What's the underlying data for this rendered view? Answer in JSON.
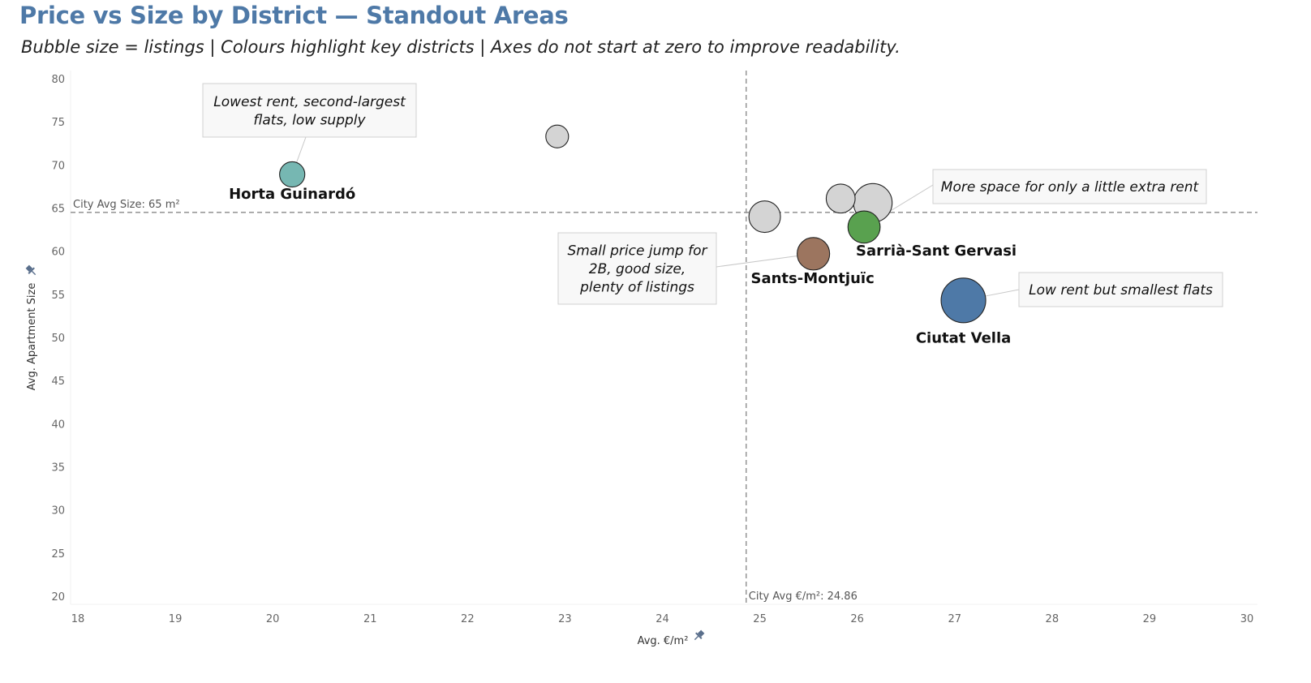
{
  "title": "Price vs Size by District — Standout Areas",
  "subtitle": "Bubble size = listings | Colours highlight key districts | Axes do not start at zero to improve readability.",
  "chart_data": {
    "type": "scatter",
    "encoding": "bubble size = listings",
    "xlabel": "Avg. €/m²",
    "ylabel": "Avg. Apartment Size",
    "xlim": [
      18,
      30
    ],
    "ylim": [
      20,
      81
    ],
    "x_ticks": [
      18,
      19,
      20,
      21,
      22,
      23,
      24,
      25,
      26,
      27,
      28,
      29,
      30
    ],
    "y_ticks": [
      20,
      25,
      30,
      35,
      40,
      45,
      50,
      55,
      60,
      65,
      70,
      75,
      80
    ],
    "gridlines": false,
    "reference_lines": [
      {
        "axis": "x",
        "value": 24.86,
        "label": "City Avg €/m²: 24.86"
      },
      {
        "axis": "y",
        "value": 64.5,
        "label": "City Avg Size: 65 m²"
      }
    ],
    "points": [
      {
        "label": "Horta Guinardó",
        "x": 20.2,
        "y": 68.9,
        "relative_size": 0.32,
        "color": "#76b7b2",
        "highlight": true
      },
      {
        "label": "",
        "x": 22.92,
        "y": 73.3,
        "relative_size": 0.26,
        "color": "#d4d4d4",
        "highlight": false
      },
      {
        "label": "",
        "x": 25.05,
        "y": 64.0,
        "relative_size": 0.5,
        "color": "#d4d4d4",
        "highlight": false
      },
      {
        "label": "",
        "x": 25.83,
        "y": 66.1,
        "relative_size": 0.42,
        "color": "#d4d4d4",
        "highlight": false
      },
      {
        "label": "",
        "x": 26.16,
        "y": 65.6,
        "relative_size": 0.75,
        "color": "#d4d4d4",
        "highlight": false
      },
      {
        "label": "Sarrià-Sant Gervasi",
        "x": 26.07,
        "y": 62.8,
        "relative_size": 0.52,
        "color": "#59a14f",
        "highlight": true
      },
      {
        "label": "Sants-Montjuïc",
        "x": 25.55,
        "y": 59.7,
        "relative_size": 0.53,
        "color": "#9c755f",
        "highlight": true
      },
      {
        "label": "Ciutat Vella",
        "x": 27.09,
        "y": 54.3,
        "relative_size": 1.0,
        "color": "#4e79a7",
        "highlight": true
      }
    ],
    "annotations": [
      {
        "text_lines": [
          "Lowest rent, second-largest",
          "flats, low supply"
        ],
        "target": "Horta Guinardó"
      },
      {
        "text_lines": [
          "More space for only a little extra rent"
        ],
        "target": "Sarrià-Sant Gervasi"
      },
      {
        "text_lines": [
          "Small price jump for",
          "2B, good size,",
          "plenty of listings"
        ],
        "target": "Sants-Montjuïc"
      },
      {
        "text_lines": [
          "Low rent but smallest flats"
        ],
        "target": "Ciutat Vella"
      }
    ]
  }
}
